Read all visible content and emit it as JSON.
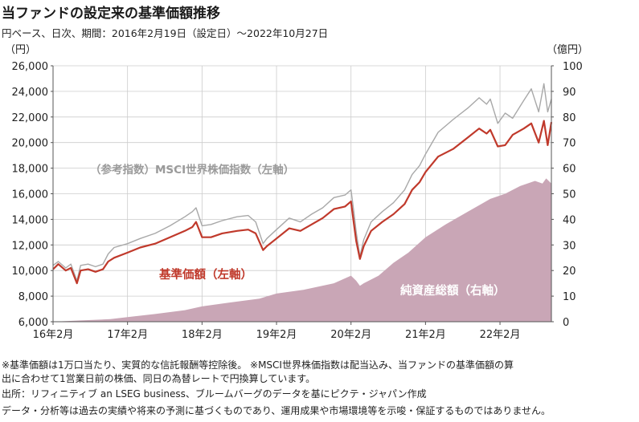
{
  "header": {
    "title": "当ファンドの設定来の基準価額推移",
    "subtitle": "円ベース、日次、期間：2016年2月19日（設定日）～2022年10月27日"
  },
  "notes": [
    "※基準価額は1万口当たり、実質的な信託報酬等控除後。 ※MSCI世界株価指数は配当込み、当ファンドの基準価額の算",
    "出に合わせて1営業日前の株価、同日の為替レートで円換算しています。",
    "出所：リフィニティブ an LSEG business、ブルームバーグのデータを基にピクテ・ジャパン作成",
    "データ・分析等は過去の実績や将来の予測に基づくものであり、運用成果や市場環境等を示唆・保証するものではありません。"
  ],
  "colors": {
    "nav": "#c0392b",
    "msci": "#a8a8a8",
    "aum": "#c9a6b6",
    "grid": "#cccccc"
  },
  "chart_data": {
    "type": "line",
    "left_axis": {
      "unit": "（円）",
      "ylim": [
        6000,
        26000
      ],
      "ticks": [
        "6,000",
        "8,000",
        "10,000",
        "12,000",
        "14,000",
        "16,000",
        "18,000",
        "20,000",
        "22,000",
        "24,000",
        "26,000"
      ]
    },
    "right_axis": {
      "unit": "（億円）",
      "ylim": [
        0,
        100
      ],
      "ticks": [
        "0",
        "10",
        "20",
        "30",
        "40",
        "50",
        "60",
        "70",
        "80",
        "90",
        "100"
      ]
    },
    "x_tick_labels": [
      "16年2月",
      "17年2月",
      "18年2月",
      "19年2月",
      "20年2月",
      "21年2月",
      "22年2月"
    ],
    "x_tick_years": [
      2016.13,
      2017.13,
      2018.13,
      2019.13,
      2020.13,
      2021.13,
      2022.13
    ],
    "xlim": [
      2016.13,
      2022.82
    ],
    "grid": true,
    "series": [
      {
        "name": "（参考指数）MSCI世界株価指数（左軸）",
        "axis": "left",
        "x": [
          2016.13,
          2016.2,
          2016.3,
          2016.37,
          2016.45,
          2016.5,
          2016.6,
          2016.7,
          2016.8,
          2016.87,
          2016.95,
          2017.13,
          2017.3,
          2017.5,
          2017.7,
          2017.9,
          2018.0,
          2018.05,
          2018.13,
          2018.25,
          2018.4,
          2018.6,
          2018.75,
          2018.85,
          2018.95,
          2019.0,
          2019.13,
          2019.3,
          2019.45,
          2019.6,
          2019.75,
          2019.9,
          2020.05,
          2020.13,
          2020.17,
          2020.2,
          2020.25,
          2020.3,
          2020.4,
          2020.55,
          2020.7,
          2020.85,
          2020.95,
          2021.05,
          2021.13,
          2021.3,
          2021.5,
          2021.7,
          2021.85,
          2021.95,
          2022.0,
          2022.1,
          2022.2,
          2022.3,
          2022.45,
          2022.55,
          2022.65,
          2022.72,
          2022.77,
          2022.82
        ],
        "y": [
          10400,
          10700,
          10200,
          10500,
          9200,
          10400,
          10500,
          10300,
          10500,
          11300,
          11800,
          12100,
          12500,
          12900,
          13500,
          14200,
          14600,
          14900,
          13500,
          13600,
          13900,
          14200,
          14300,
          13800,
          12100,
          12500,
          13200,
          14100,
          13800,
          14400,
          14900,
          15700,
          15900,
          16300,
          14500,
          13000,
          11100,
          12400,
          13800,
          14600,
          15300,
          16300,
          17500,
          18200,
          19100,
          20800,
          21800,
          22700,
          23500,
          23000,
          23400,
          21500,
          22300,
          21900,
          23300,
          24200,
          22400,
          24600,
          22400,
          23400
        ]
      },
      {
        "name": "基準価額（左軸）",
        "axis": "left",
        "x": [
          2016.13,
          2016.2,
          2016.3,
          2016.37,
          2016.45,
          2016.5,
          2016.6,
          2016.7,
          2016.8,
          2016.87,
          2016.95,
          2017.13,
          2017.3,
          2017.5,
          2017.7,
          2017.9,
          2018.0,
          2018.05,
          2018.13,
          2018.25,
          2018.4,
          2018.6,
          2018.75,
          2018.85,
          2018.95,
          2019.0,
          2019.13,
          2019.3,
          2019.45,
          2019.6,
          2019.75,
          2019.9,
          2020.05,
          2020.13,
          2020.17,
          2020.2,
          2020.25,
          2020.3,
          2020.4,
          2020.55,
          2020.7,
          2020.85,
          2020.95,
          2021.05,
          2021.13,
          2021.3,
          2021.5,
          2021.7,
          2021.85,
          2021.95,
          2022.0,
          2022.1,
          2022.2,
          2022.3,
          2022.45,
          2022.55,
          2022.65,
          2022.72,
          2022.77,
          2022.82
        ],
        "y": [
          10100,
          10500,
          10000,
          10200,
          9000,
          10000,
          10100,
          9900,
          10100,
          10700,
          11000,
          11400,
          11800,
          12100,
          12600,
          13100,
          13400,
          13800,
          12600,
          12600,
          12900,
          13100,
          13200,
          12900,
          11600,
          11900,
          12500,
          13300,
          13100,
          13600,
          14100,
          14800,
          15000,
          15400,
          13600,
          12300,
          10900,
          11900,
          13100,
          13800,
          14400,
          15200,
          16300,
          16900,
          17700,
          18900,
          19500,
          20400,
          21100,
          20700,
          21000,
          19700,
          19800,
          20600,
          21100,
          21500,
          20000,
          21700,
          19800,
          21600
        ]
      },
      {
        "name": "純資産総額（右軸）",
        "type": "area",
        "axis": "right",
        "x": [
          2016.13,
          2016.5,
          2016.9,
          2017.13,
          2017.5,
          2017.9,
          2018.13,
          2018.5,
          2018.9,
          2019.13,
          2019.5,
          2019.9,
          2020.13,
          2020.2,
          2020.25,
          2020.3,
          2020.5,
          2020.7,
          2020.9,
          2021.13,
          2021.4,
          2021.7,
          2022.0,
          2022.2,
          2022.4,
          2022.6,
          2022.7,
          2022.75,
          2022.82
        ],
        "y": [
          0,
          0.5,
          1.0,
          1.8,
          3,
          4.5,
          6,
          7.5,
          9,
          11,
          12.5,
          15,
          18,
          16,
          14,
          15,
          18,
          23,
          27,
          33,
          38,
          43,
          48,
          50,
          53,
          55,
          54,
          56,
          54
        ]
      }
    ],
    "annotations": [
      {
        "text": "（参考指数）MSCI世界株価指数（左軸）",
        "color": "msci"
      },
      {
        "text": "基準価額（左軸）",
        "color": "nav"
      },
      {
        "text": "純資産総額（右軸）",
        "color": "aum_label"
      }
    ]
  }
}
